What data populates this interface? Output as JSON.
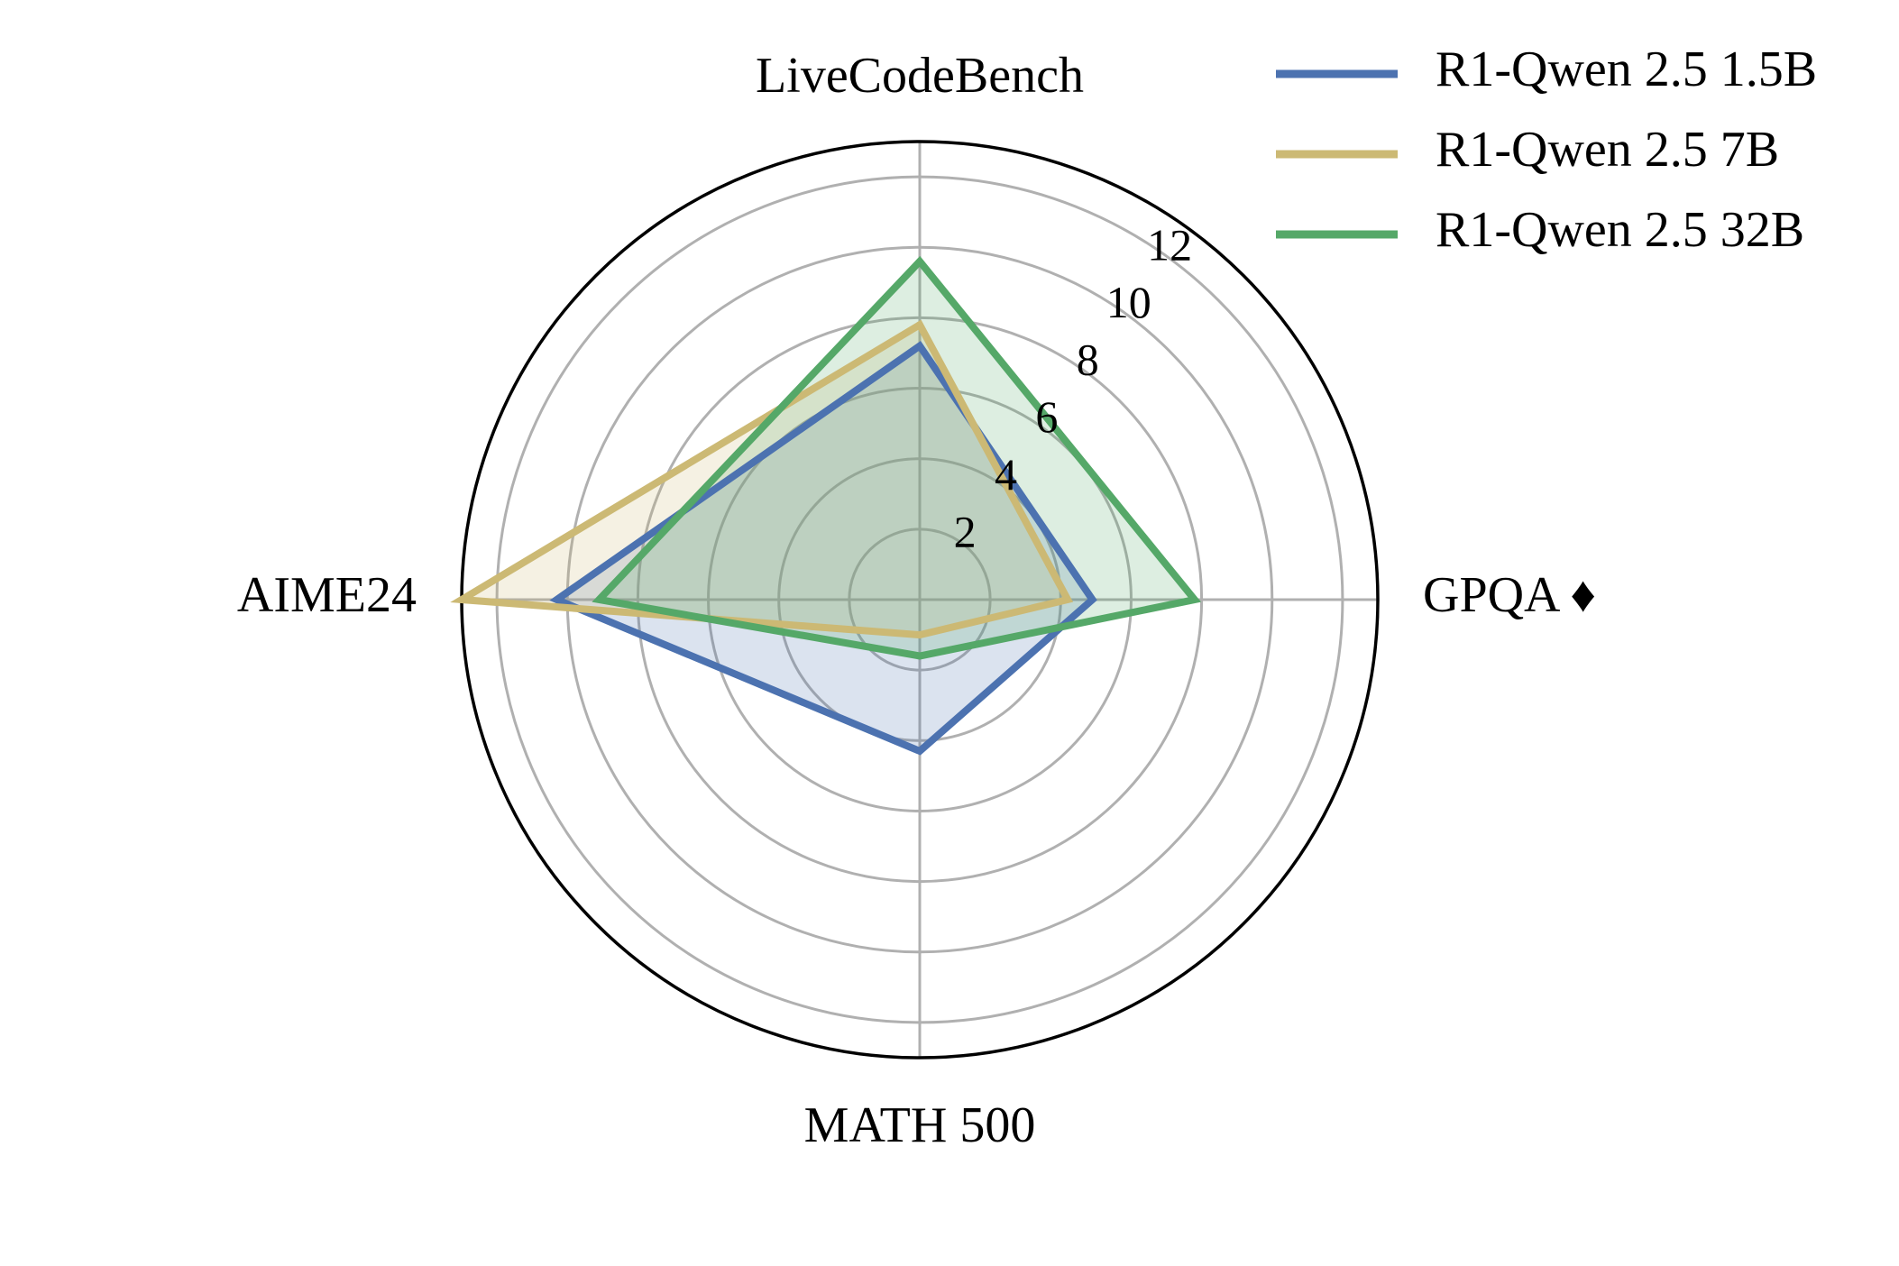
{
  "chart_data": {
    "type": "radar",
    "axes": [
      "LiveCodeBench",
      "GPQA ♦",
      "MATH 500",
      "AIME24"
    ],
    "rlim": [
      0,
      13
    ],
    "rticks": [
      2,
      4,
      6,
      8,
      10,
      12
    ],
    "grid": true,
    "legend_position": "top-right",
    "series": [
      {
        "name": "R1-Qwen 2.5 1.5B",
        "color": "#4c72b0",
        "values": [
          7.2,
          4.9,
          4.3,
          10.3
        ]
      },
      {
        "name": "R1-Qwen 2.5 7B",
        "color": "#ccb974",
        "values": [
          7.8,
          4.2,
          1.0,
          13.0
        ]
      },
      {
        "name": "R1-Qwen 2.5 32B",
        "color": "#55a868",
        "values": [
          9.6,
          7.8,
          1.6,
          9.1
        ]
      }
    ]
  }
}
